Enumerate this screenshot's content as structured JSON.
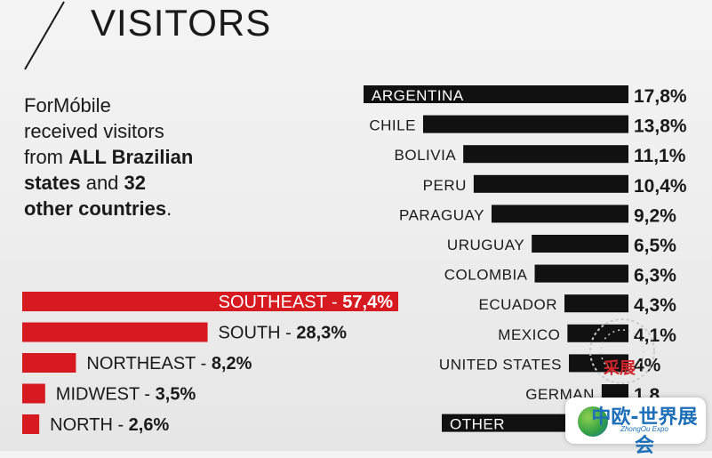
{
  "header": {
    "title": "VISITORS"
  },
  "intro": {
    "line1": "ForMóbile",
    "line2": "received visitors",
    "line3_pre": "from ",
    "line3_bold": "ALL Brazilian",
    "line4_bold1": "states",
    "line4_mid": " and ",
    "line4_bold2": "32",
    "line5_bold": "other countries",
    "line5_post": "."
  },
  "colors": {
    "region_bar": "#d71920",
    "country_bar": "#111111",
    "text": "#1a1a1a"
  },
  "chart_data": [
    {
      "type": "bar",
      "orientation": "horizontal",
      "title": "",
      "categories": [
        "SOUTHEAST",
        "SOUTH",
        "NORTHEAST",
        "MIDWEST",
        "NORTH"
      ],
      "values": [
        57.4,
        28.3,
        8.2,
        3.5,
        2.6
      ],
      "value_labels": [
        "57,4%",
        "28,3%",
        "8,2%",
        "3,5%",
        "2,6%"
      ],
      "unit": "%",
      "color": "#d71920"
    },
    {
      "type": "bar",
      "orientation": "horizontal",
      "title": "",
      "categories": [
        "ARGENTINA",
        "CHILE",
        "BOLIVIA",
        "PERU",
        "PARAGUAY",
        "URUGUAY",
        "COLOMBIA",
        "ECUADOR",
        "MEXICO",
        "UNITED STATES",
        "GERMAN",
        "OTHER"
      ],
      "values": [
        17.8,
        13.8,
        11.1,
        10.4,
        9.2,
        6.5,
        6.3,
        4.3,
        4.1,
        4.0,
        1.8,
        null
      ],
      "value_labels": [
        "17,8%",
        "13,8%",
        "11,1%",
        "10,4%",
        "9,2%",
        "6,5%",
        "6,3%",
        "4,3%",
        "4,1%",
        "4%",
        "1,8",
        ""
      ],
      "unit": "%",
      "color": "#111111"
    }
  ],
  "watermark": {
    "stamp_text": "采展",
    "badge_main": "中欧-世界展会",
    "badge_sub": "ZhongOu Expo"
  }
}
